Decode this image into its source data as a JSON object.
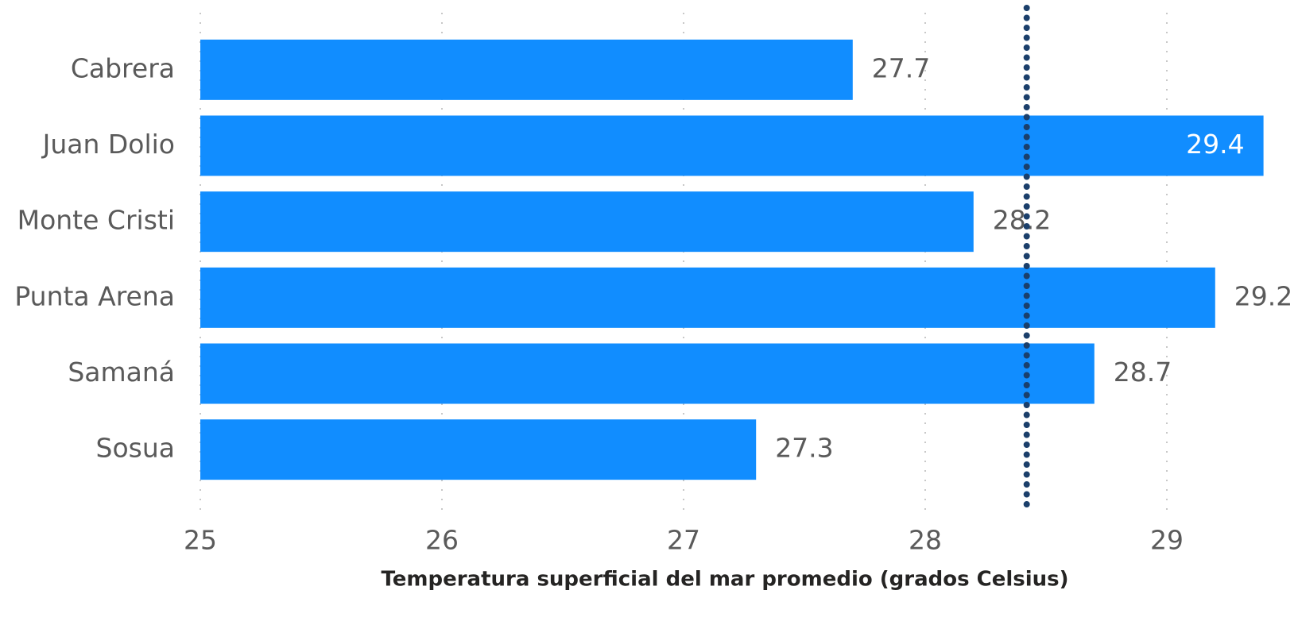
{
  "chart_data": {
    "type": "bar",
    "orientation": "horizontal",
    "x_label": "Temperatura superficial del mar promedio (grados Celsius)",
    "categories": [
      "Cabrera",
      "Juan Dolio",
      "Monte Cristi",
      "Punta Arena",
      "Samaná",
      "Sosua"
    ],
    "values": [
      27.7,
      29.4,
      28.2,
      29.2,
      28.7,
      27.3
    ],
    "color": "#118dff",
    "xlim": [
      25,
      29.5
    ],
    "xticks": [
      25,
      26,
      27,
      28,
      29
    ],
    "grid": true,
    "reference_line": {
      "value": 28.42,
      "color": "#1b3f6b",
      "style": "dotted"
    }
  }
}
